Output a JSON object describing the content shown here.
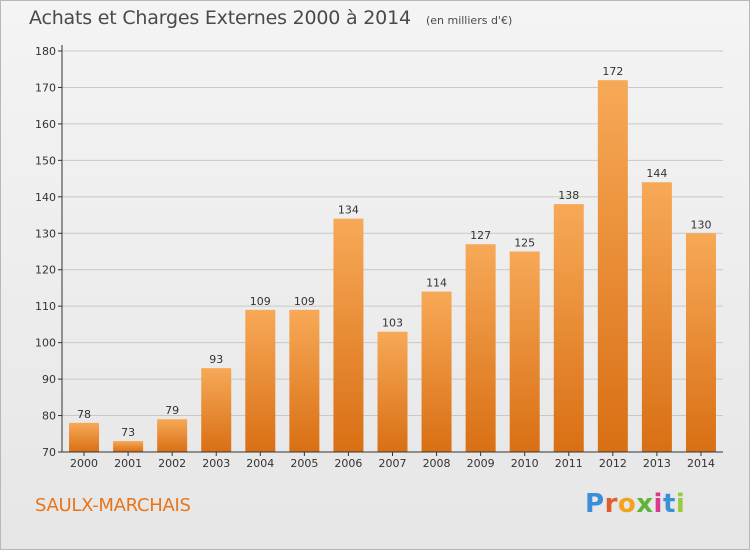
{
  "header": {
    "title": "Achats et Charges Externes 2000 à 2014",
    "subtitle": "(en milliers d'€)"
  },
  "footer": {
    "commune": "SAULX-MARCHAIS",
    "logo_letters": [
      "P",
      "r",
      "o",
      "x",
      "i",
      "t",
      "i"
    ],
    "logo_colors": [
      "#3a8fd6",
      "#e25b2a",
      "#f2a21c",
      "#5fb33b",
      "#d83a8c",
      "#3a8fd6",
      "#9acb3c"
    ]
  },
  "colors": {
    "bar_top": "#f7a957",
    "bar_bottom": "#d96f14",
    "axis": "#333333",
    "grid": "#c8c8c8"
  },
  "chart_data": {
    "type": "bar",
    "title": "Achats et Charges Externes 2000 à 2014",
    "subtitle": "(en milliers d'€)",
    "xlabel": "",
    "ylabel": "",
    "categories": [
      "2000",
      "2001",
      "2002",
      "2003",
      "2004",
      "2005",
      "2006",
      "2007",
      "2008",
      "2009",
      "2010",
      "2011",
      "2012",
      "2013",
      "2014"
    ],
    "values": [
      78,
      73,
      79,
      93,
      109,
      109,
      134,
      103,
      114,
      127,
      125,
      138,
      172,
      144,
      130
    ],
    "ylim": [
      70,
      180
    ],
    "yticks": [
      70,
      80,
      90,
      100,
      110,
      120,
      130,
      140,
      150,
      160,
      170,
      180
    ],
    "grid": true,
    "data_labels": true
  }
}
